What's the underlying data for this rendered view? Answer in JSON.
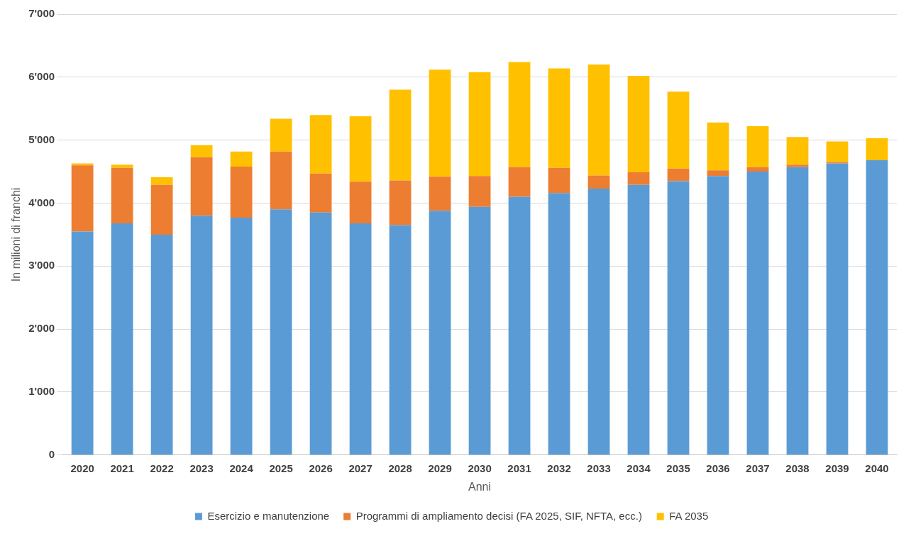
{
  "chart_data": {
    "type": "bar",
    "stacked": true,
    "xlabel": "Anni",
    "ylabel": "In milioni di franchi",
    "categories": [
      "2020",
      "2021",
      "2022",
      "2023",
      "2024",
      "2025",
      "2026",
      "2027",
      "2028",
      "2029",
      "2030",
      "2031",
      "2032",
      "2033",
      "2034",
      "2035",
      "2036",
      "2037",
      "2038",
      "2039",
      "2040"
    ],
    "series": [
      {
        "name": "Esercizio e manutenzione",
        "color": "#5b9bd5",
        "values": [
          3550,
          3680,
          3500,
          3800,
          3770,
          3900,
          3850,
          3680,
          3650,
          3880,
          3940,
          4100,
          4160,
          4230,
          4290,
          4350,
          4430,
          4500,
          4570,
          4630,
          4680
        ]
      },
      {
        "name": "Programmi di ampliamento decisi (FA 2025, SIF, NFTA, ecc.)",
        "color": "#ed7d31",
        "values": [
          1050,
          880,
          790,
          930,
          810,
          920,
          620,
          660,
          710,
          540,
          490,
          470,
          400,
          210,
          200,
          200,
          90,
          70,
          40,
          20,
          0
        ]
      },
      {
        "name": "FA 2035",
        "color": "#ffc000",
        "values": [
          30,
          50,
          120,
          190,
          240,
          520,
          930,
          1040,
          1440,
          1700,
          1650,
          1670,
          1580,
          1760,
          1530,
          1220,
          760,
          650,
          440,
          330,
          350
        ]
      }
    ],
    "ylim": [
      0,
      7000
    ],
    "yticks": [
      0,
      {
        "value": 1000,
        "label": "1'000"
      },
      {
        "value": 2000,
        "label": "2'000"
      },
      {
        "value": 3000,
        "label": "3'000"
      },
      {
        "value": 4000,
        "label": "4'000"
      },
      {
        "value": 5000,
        "label": "5'000"
      },
      {
        "value": 6000,
        "label": "6'000"
      },
      {
        "value": 7000,
        "label": "7'000"
      }
    ],
    "grid": "y",
    "legend": "bottom"
  }
}
